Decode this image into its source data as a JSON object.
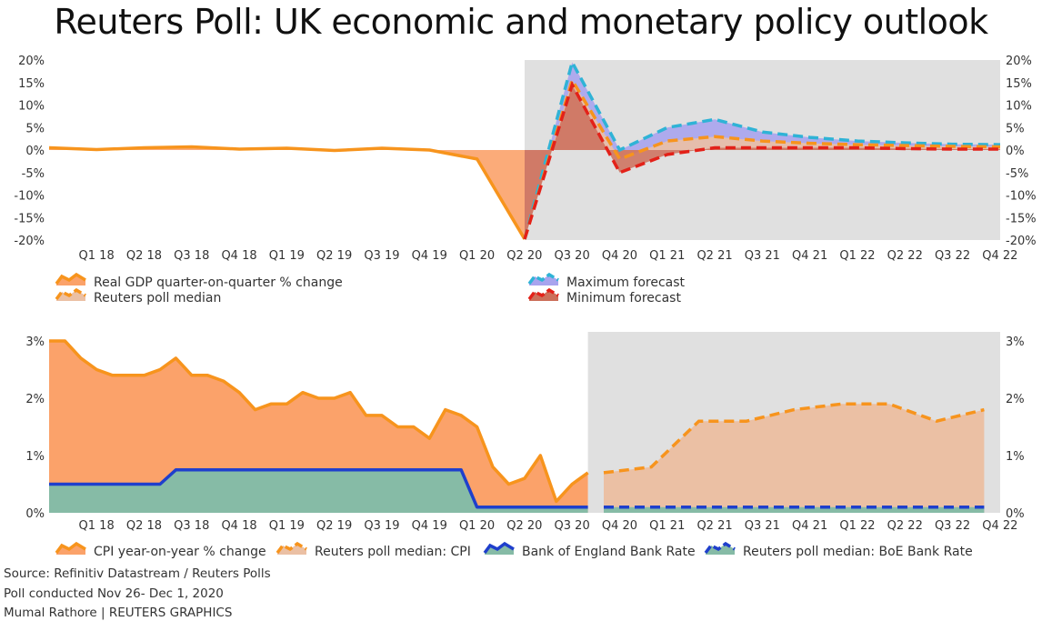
{
  "title": "Reuters Poll: UK economic and monetary policy outlook",
  "footer": {
    "source": "Source: Refinitiv Datastream / Reuters Polls",
    "poll": "Poll conducted Nov 26- Dec 1, 2020",
    "credit": "Mumal Rathore | REUTERS GRAPHICS"
  },
  "colors": {
    "orange": "#f7941d",
    "orange_fill": "#fba26a",
    "forecast_fill": "#ebc0a4",
    "shade": "#e0e0e0",
    "max": "#2fb3d6",
    "max_fill": "#a8a4ee",
    "min": "#e32119",
    "min_fill": "#cc6f5a",
    "boe": "#1f3fcc",
    "boe_fill": "#86bba6"
  },
  "chart_data": [
    {
      "type": "area",
      "title": "",
      "x_tick_labels": [
        "Q1 18",
        "Q2 18",
        "Q3 18",
        "Q4 18",
        "Q1 19",
        "Q2 19",
        "Q3 19",
        "Q4 19",
        "Q1 20",
        "Q2 20",
        "Q3 20",
        "Q4 20",
        "Q1 21",
        "Q2 21",
        "Q3 21",
        "Q4 21",
        "Q1 22",
        "Q2 22",
        "Q3 22",
        "Q4 22"
      ],
      "y_tick_labels": [
        "20%",
        "15%",
        "10%",
        "5%",
        "0%",
        "-5%",
        "-10%",
        "-15%",
        "-20%"
      ],
      "ylim": [
        -20,
        20
      ],
      "forecast_shaded_from": "Q2 20",
      "legend": [
        "Real GDP quarter-on-quarter % change",
        "Reuters poll median",
        "Maximum forecast",
        "Minimum forecast"
      ],
      "series": [
        {
          "name": "Real GDP quarter-on-quarter % change",
          "x": [
            "Q4 17",
            "Q1 18",
            "Q2 18",
            "Q3 18",
            "Q4 18",
            "Q1 19",
            "Q2 19",
            "Q3 19",
            "Q4 19",
            "Q1 20",
            "Q2 20"
          ],
          "values": [
            0.5,
            0.1,
            0.5,
            0.7,
            0.2,
            0.4,
            -0.1,
            0.4,
            0.0,
            -2.0,
            -19.8
          ]
        },
        {
          "name": "Reuters poll median",
          "x": [
            "Q2 20",
            "Q3 20",
            "Q4 20",
            "Q1 21",
            "Q2 21",
            "Q3 21",
            "Q4 21",
            "Q1 22",
            "Q2 22",
            "Q3 22",
            "Q4 22"
          ],
          "values": [
            -19.8,
            15.5,
            -2.0,
            2.0,
            3.0,
            2.0,
            1.5,
            1.2,
            1.0,
            0.8,
            0.7
          ]
        },
        {
          "name": "Maximum forecast",
          "x": [
            "Q2 20",
            "Q3 20",
            "Q4 20",
            "Q1 21",
            "Q2 21",
            "Q3 21",
            "Q4 21",
            "Q1 22",
            "Q2 22",
            "Q3 22",
            "Q4 22"
          ],
          "values": [
            -19.8,
            19.5,
            0.0,
            5.0,
            6.8,
            4.0,
            2.8,
            2.0,
            1.6,
            1.3,
            1.2
          ]
        },
        {
          "name": "Minimum forecast",
          "x": [
            "Q2 20",
            "Q3 20",
            "Q4 20",
            "Q1 21",
            "Q2 21",
            "Q3 21",
            "Q4 21",
            "Q1 22",
            "Q2 22",
            "Q3 22",
            "Q4 22"
          ],
          "values": [
            -19.8,
            14.5,
            -5.0,
            -1.0,
            0.5,
            0.5,
            0.5,
            0.5,
            0.3,
            0.2,
            0.2
          ]
        }
      ]
    },
    {
      "type": "area",
      "title": "",
      "x_tick_labels": [
        "Q1 18",
        "Q2 18",
        "Q3 18",
        "Q4 18",
        "Q1 19",
        "Q2 19",
        "Q3 19",
        "Q4 19",
        "Q1 20",
        "Q2 20",
        "Q3 20",
        "Q4 20",
        "Q1 21",
        "Q2 21",
        "Q3 21",
        "Q4 21",
        "Q1 22",
        "Q2 22",
        "Q3 22",
        "Q4 22"
      ],
      "y_tick_labels": [
        "3%",
        "2%",
        "1%",
        "0%"
      ],
      "ylim": [
        0,
        3
      ],
      "forecast_shaded_from": "Oct 2020",
      "legend": [
        "CPI year-on-year % change",
        "Reuters poll median: CPI",
        "Bank of England Bank Rate",
        "Reuters poll median: BoE Bank Rate"
      ],
      "series": [
        {
          "name": "CPI year-on-year % change",
          "x": [
            "Dec 17",
            "Jan 18",
            "Feb 18",
            "Mar 18",
            "Apr 18",
            "May 18",
            "Jun 18",
            "Jul 18",
            "Aug 18",
            "Sep 18",
            "Oct 18",
            "Nov 18",
            "Dec 18",
            "Jan 19",
            "Feb 19",
            "Mar 19",
            "Apr 19",
            "May 19",
            "Jun 19",
            "Jul 19",
            "Aug 19",
            "Sep 19",
            "Oct 19",
            "Nov 19",
            "Dec 19",
            "Jan 20",
            "Feb 20",
            "Mar 20",
            "Apr 20",
            "May 20",
            "Jun 20",
            "Jul 20",
            "Aug 20",
            "Sep 20",
            "Oct 20"
          ],
          "values": [
            3.0,
            3.0,
            2.7,
            2.5,
            2.4,
            2.4,
            2.4,
            2.5,
            2.7,
            2.4,
            2.4,
            2.3,
            2.1,
            1.8,
            1.9,
            1.9,
            2.1,
            2.0,
            2.0,
            2.1,
            1.7,
            1.7,
            1.5,
            1.5,
            1.3,
            1.8,
            1.7,
            1.5,
            0.8,
            0.5,
            0.6,
            1.0,
            0.2,
            0.5,
            0.7
          ]
        },
        {
          "name": "Reuters poll median: CPI",
          "x": [
            "Q4 20",
            "Q1 21",
            "Q2 21",
            "Q3 21",
            "Q4 21",
            "Q1 22",
            "Q2 22",
            "Q3 22",
            "Q4 22"
          ],
          "values": [
            0.7,
            0.8,
            1.6,
            1.6,
            1.8,
            1.9,
            1.9,
            1.6,
            1.8
          ]
        },
        {
          "name": "Bank of England Bank Rate",
          "x": [
            "Dec 17",
            "Jul 18",
            "Aug 18",
            "Feb 20",
            "Mar 20",
            "Oct 20"
          ],
          "values": [
            0.5,
            0.5,
            0.75,
            0.75,
            0.1,
            0.1
          ]
        },
        {
          "name": "Reuters poll median: BoE Bank Rate",
          "x": [
            "Q4 20",
            "Q4 22"
          ],
          "values": [
            0.1,
            0.1
          ]
        }
      ]
    }
  ]
}
